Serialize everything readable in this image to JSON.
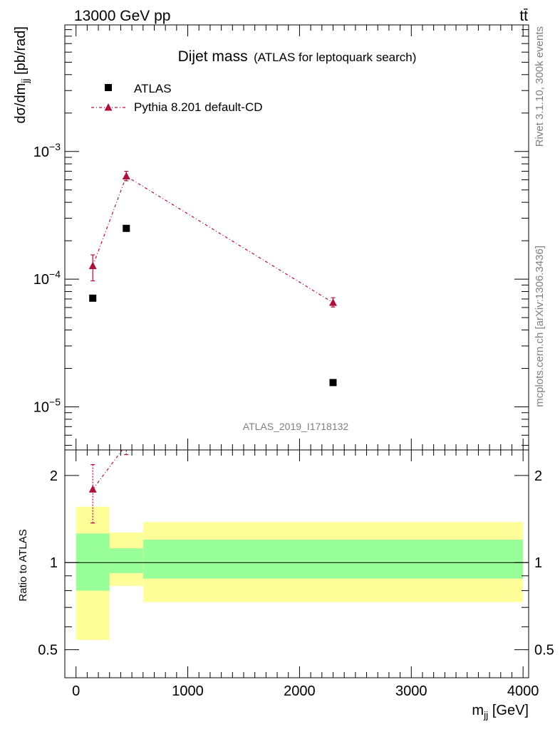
{
  "header": {
    "energy": "13000 GeV pp",
    "process": "tt̄"
  },
  "side_labels": {
    "rivet": "Rivet 3.1.10,  300k events",
    "mcplots": "mcplots.cern.ch [arXiv:1306.3436]"
  },
  "chart_data": [
    {
      "panel": "main",
      "type": "scatter",
      "title": "Dijet mass",
      "subtitle": "(ATLAS for leptoquark search)",
      "analysis_id": "ATLAS_2019_I1718132",
      "ylabel": "dσ/dmjj [pb/rad]",
      "yscale": "log",
      "xlim": [
        -100,
        4050
      ],
      "ylim": [
        4.6e-06,
        0.0098
      ],
      "yticks": [
        1e-05,
        0.0001,
        0.001
      ],
      "ytick_labels": [
        "10⁻⁵",
        "10⁻⁴",
        "10⁻³"
      ],
      "legend_position": "top-left",
      "series": [
        {
          "name": "ATLAS",
          "marker": "square",
          "color": "#000000",
          "x": [
            150,
            450,
            2300
          ],
          "y": [
            7.1e-05,
            0.00025,
            1.55e-05
          ]
        },
        {
          "name": "Pythia 8.201 default-CD",
          "marker": "triangle",
          "line": "dash-dot",
          "color": "#b0103c",
          "x": [
            150,
            450,
            2300
          ],
          "y": [
            0.000127,
            0.00064,
            6.55e-05
          ],
          "yerr_low": [
            9.7e-05,
            0.00059,
            6.05e-05
          ],
          "yerr_high": [
            0.000155,
            0.0007,
            7.15e-05
          ]
        }
      ]
    },
    {
      "panel": "ratio",
      "type": "scatter",
      "ylabel": "Ratio to ATLAS",
      "xlabel": "mjj [GeV]",
      "yscale": "log",
      "ylim": [
        0.4,
        2.45
      ],
      "yticks": [
        0.5,
        1,
        2
      ],
      "ytick_labels": [
        "0.5",
        "1",
        "2"
      ],
      "xticks": [
        0,
        1000,
        2000,
        3000,
        4000
      ],
      "xtick_labels": [
        "0",
        "1000",
        "2000",
        "3000",
        "4000"
      ],
      "reference_line": 1,
      "bands": [
        {
          "x_low": [
            0,
            300,
            600
          ],
          "x_high": [
            300,
            600,
            4000
          ],
          "inner_low": [
            0.8,
            0.92,
            0.88
          ],
          "inner_high": [
            1.26,
            1.12,
            1.2
          ],
          "outer_low": [
            0.54,
            0.83,
            0.73
          ],
          "outer_high": [
            1.56,
            1.27,
            1.38
          ],
          "inner_color": "#99ff99",
          "outer_color": "#ffff99"
        }
      ],
      "series": [
        {
          "name": "Pythia 8.201 default-CD",
          "marker": "triangle",
          "line": "dash-dot",
          "color": "#b0103c",
          "x": [
            150,
            450
          ],
          "y": [
            1.79,
            2.56
          ],
          "yerr_low": [
            1.37,
            2.36
          ],
          "yerr_high": [
            2.18,
            2.8
          ]
        }
      ]
    }
  ]
}
